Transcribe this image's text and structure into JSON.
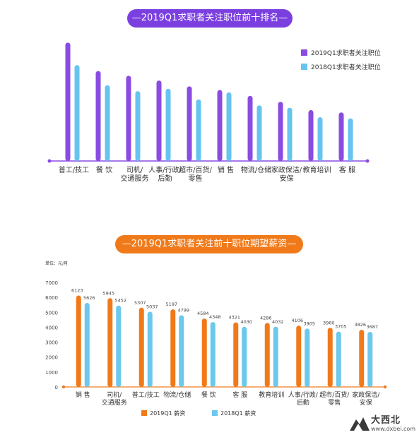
{
  "chart_data": [
    {
      "type": "bar",
      "title": "—2019Q1求职者关注职位前十排名—",
      "categories": [
        "普工/技工",
        "餐 饮",
        "司机/\n交通服务",
        "人事/行政/\n后勤",
        "超市/百货/\n零售",
        "销 售",
        "物流/仓储",
        "家政保洁/\n安保",
        "教育培训",
        "客 服"
      ],
      "series": [
        {
          "name": "2019Q1求职者关注职位",
          "values": [
            100,
            76,
            72,
            68,
            63,
            60,
            55,
            50,
            43,
            41
          ]
        },
        {
          "name": "2018Q1求职者关注职位",
          "values": [
            81,
            64,
            59,
            61,
            52,
            58,
            47,
            45,
            37,
            36
          ]
        }
      ],
      "ylim": [
        0,
        105
      ],
      "legend": "top-right",
      "colors": [
        "#8a4be2",
        "#66c4f0"
      ],
      "grid": false
    },
    {
      "type": "bar",
      "title": "—2019Q1求职者关注前十职位期望薪资—",
      "unit_label": "单位：元/月",
      "categories": [
        "销 售",
        "司机/\n交通服务",
        "普工/技工",
        "物流/仓储",
        "餐 饮",
        "客 服",
        "教育培训",
        "人事/行政/\n后勤",
        "超市/百货/\n零售",
        "家政保洁/\n安保"
      ],
      "series": [
        {
          "name": "2019Q1 薪资",
          "values": [
            6123,
            5945,
            5307,
            5197,
            4584,
            4321,
            4286,
            4106,
            3960,
            3826
          ]
        },
        {
          "name": "2018Q1 薪资",
          "values": [
            5626,
            5452,
            5037,
            4799,
            4348,
            4030,
            4032,
            3905,
            3705,
            3687
          ]
        }
      ],
      "yticks": [
        0,
        1000,
        2000,
        3000,
        4000,
        5000,
        6000,
        7000
      ],
      "ylim": [
        0,
        7000
      ],
      "legend": "bottom",
      "colors": [
        "#f07a1a",
        "#6cc8ec"
      ],
      "grid": false
    }
  ],
  "watermark": {
    "text": "大西北",
    "url": "www.dxbei.com"
  }
}
